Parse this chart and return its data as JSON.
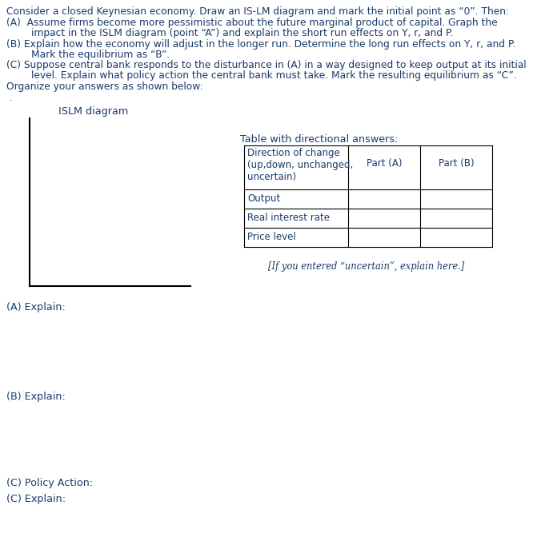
{
  "bg_color": "#ffffff",
  "text_color": "#1a3a6b",
  "body_lines": [
    "Consider a closed Keynesian economy. Draw an IS-LM diagram and mark the initial point as “0”. Then:",
    "(A)  Assume firms become more pessimistic about the future marginal product of capital. Graph the",
    "        impact in the ISLM diagram (point “A”) and explain the short run effects on Y, r, and P.",
    "(B) Explain how the economy will adjust in the longer run. Determine the long run effects on Y, r, and P.",
    "        Mark the equilibrium as “B”.",
    "(C) Suppose central bank responds to the disturbance in (A) in a way designed to keep output at its initial",
    "        level. Explain what policy action the central bank must take. Mark the resulting equilibrium as “C”.",
    "Organize your answers as shown below:"
  ],
  "dot_line": ".",
  "islm_label": "ISLM diagram",
  "table_title": "Table with directional answers:",
  "table_col0_header": "Direction of change\n(up,down, unchanged,\nuncertain)",
  "table_col1_header": "Part (A)",
  "table_col2_header": "Part (B)",
  "table_rows": [
    "Output",
    "Real interest rate",
    "Price level"
  ],
  "uncertain_note": "[If you entered “uncertain”, explain here.]",
  "section_a": "(A) Explain:",
  "section_b": "(B) Explain:",
  "section_c1": "(C) Policy Action:",
  "section_c2": "(C) Explain:",
  "body_font_size": 8.8,
  "label_font_size": 9.2,
  "table_font_size": 8.5,
  "note_font_size": 8.3
}
